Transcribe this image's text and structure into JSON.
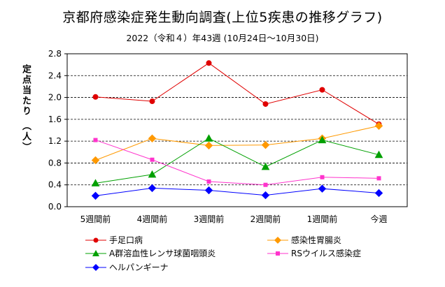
{
  "chart_data": {
    "type": "line",
    "title": "京都府感染症発生動向調査(上位5疾患の推移グラフ)",
    "subtitle": "2022（令和４）年43週 (10月24日～10月30日)",
    "ylabel": "定点当たり （人）",
    "xlabel": "",
    "categories": [
      "5週間前",
      "4週間前",
      "3週間前",
      "2週間前",
      "1週間前",
      "今週"
    ],
    "ylim": [
      0,
      2.8
    ],
    "yticks": [
      "0.0",
      "0.4",
      "0.8",
      "1.2",
      "1.6",
      "2.0",
      "2.4",
      "2.8"
    ],
    "grid": "horizontal-dashed",
    "legend_position": "bottom",
    "series": [
      {
        "name": "手足口病",
        "values": [
          2.01,
          1.93,
          2.63,
          1.88,
          2.14,
          1.51
        ],
        "color": "#e00000",
        "marker": "circle"
      },
      {
        "name": "感染性胃腸炎",
        "values": [
          0.85,
          1.25,
          1.12,
          1.13,
          1.25,
          1.48
        ],
        "color": "#ff9900",
        "marker": "diamond"
      },
      {
        "name": "A群溶血性レンサ球菌咽頭炎",
        "values": [
          0.43,
          0.59,
          1.25,
          0.73,
          1.22,
          0.95
        ],
        "color": "#00a000",
        "marker": "triangle"
      },
      {
        "name": "RSウイルス感染症",
        "values": [
          1.22,
          0.86,
          0.46,
          0.4,
          0.54,
          0.52
        ],
        "color": "#ff33cc",
        "marker": "square"
      },
      {
        "name": "ヘルパンギーナ",
        "values": [
          0.2,
          0.34,
          0.3,
          0.21,
          0.33,
          0.25
        ],
        "color": "#0000ff",
        "marker": "diamond"
      }
    ]
  }
}
